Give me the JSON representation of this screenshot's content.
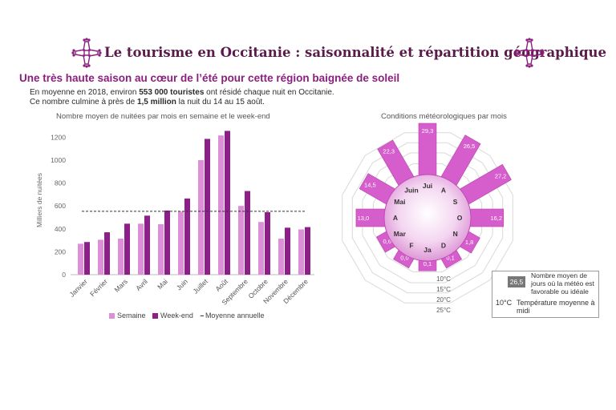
{
  "header": {
    "title": "Le tourisme en Occitanie : saisonnalité et répartition géographique",
    "subtitle": "Une très haute saison au cœur de l’été pour cette région baignée de soleil",
    "intro_1a": "En moyenne en 2018, environ ",
    "intro_1b": "553 000 touristes",
    "intro_1c": " ont résidé chaque nuit en Occitanie.",
    "intro_2a": "Ce nombre culmine à près de ",
    "intro_2b": "1,5 million",
    "intro_2c": " la nuit du 14 au 15 août."
  },
  "colors": {
    "title": "#5a1a4a",
    "accent": "#8a1f7d",
    "weekday": "#dd8fd8",
    "weekend": "#8c1f88",
    "petal": "#d65dcc",
    "petal_stroke": "#b940ad"
  },
  "bar_chart_title": "Nombre moyen de nuitées par mois en semaine et le week-end",
  "radial_chart_title": "Conditions météorologiques par mois",
  "legend": {
    "weekday": "Semaine",
    "weekend": "Week-end",
    "average": "Moyenne annuelle"
  },
  "radial_legend": {
    "sample_value": "26,5",
    "days_label": "Nombre moyen de jours où la météo est favorable ou idéale",
    "temp_key": "10°C",
    "temp_label": "Température moyenne à midi"
  },
  "chart_data": [
    {
      "type": "bar",
      "title": "Nombre moyen de nuitées par mois en semaine et le week-end",
      "ylabel": "Milliers de nuitées",
      "xlabel": "",
      "ylim": [
        0,
        1300
      ],
      "yticks": [
        0,
        200,
        400,
        600,
        800,
        1000,
        1200
      ],
      "grid": false,
      "categories": [
        "Janvier",
        "Février",
        "Mars",
        "Avril",
        "Mai",
        "Juin",
        "Juillet",
        "Août",
        "Septembre",
        "Octobre",
        "Novembre",
        "Décembre"
      ],
      "series": [
        {
          "name": "Semaine",
          "values": [
            270,
            305,
            315,
            445,
            440,
            550,
            1000,
            1215,
            600,
            460,
            315,
            395
          ]
        },
        {
          "name": "Week-end",
          "values": [
            285,
            370,
            445,
            515,
            560,
            665,
            1185,
            1255,
            730,
            545,
            410,
            415
          ]
        }
      ],
      "reference_line": {
        "name": "Moyenne annuelle",
        "value": 553
      }
    },
    {
      "type": "radial bar",
      "title": "Conditions météorologiques par mois",
      "categories": [
        "Jui",
        "A",
        "S",
        "O",
        "N",
        "D",
        "Ja",
        "F",
        "Mar",
        "A",
        "Mai",
        "Juin"
      ],
      "values": [
        29.3,
        26.5,
        27.2,
        16.2,
        1.8,
        0.1,
        0.1,
        0.0,
        0.6,
        13.0,
        14.5,
        22.3
      ],
      "value_labels": [
        "29,3",
        "26,5",
        "27,2",
        "16,2",
        "1,8",
        "0,1",
        "0,1",
        "0,0",
        "0,6",
        "13,0",
        "14,5",
        "22,3"
      ],
      "temperature_rings": [
        "10°C",
        "15°C",
        "20°C",
        "25°C"
      ]
    }
  ]
}
